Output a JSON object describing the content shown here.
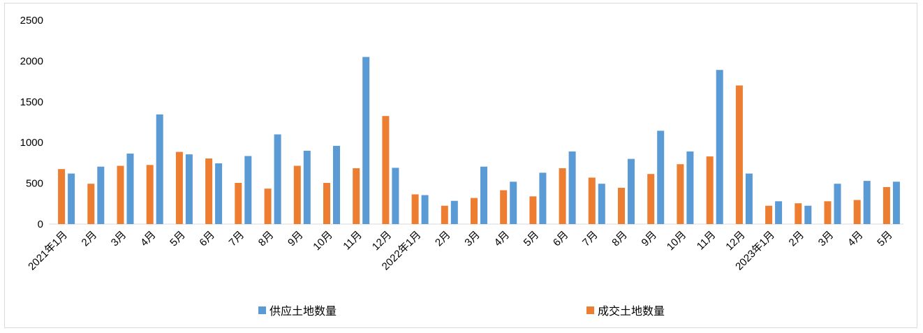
{
  "chart_data": {
    "type": "bar",
    "title": "",
    "xlabel": "",
    "ylabel": "",
    "ylim": [
      0,
      2500
    ],
    "yticks": [
      "0",
      "500",
      "1000",
      "1500",
      "2000",
      "2500"
    ],
    "grid": false,
    "legend_position": "bottom",
    "categories": [
      "2021年1月",
      "2月",
      "3月",
      "4月",
      "5月",
      "6月",
      "7月",
      "8月",
      "9月",
      "10月",
      "11月",
      "12月",
      "2022年1月",
      "2月",
      "3月",
      "4月",
      "5月",
      "6月",
      "7月",
      "8月",
      "9月",
      "10月",
      "11月",
      "12月",
      "2023年1月",
      "2月",
      "3月",
      "4月",
      "5月"
    ],
    "series": [
      {
        "name": "成交土地数量",
        "color": "#ED7D31",
        "values": [
          675,
          495,
          715,
          725,
          885,
          805,
          505,
          435,
          715,
          505,
          685,
          1325,
          365,
          225,
          320,
          415,
          340,
          685,
          570,
          445,
          615,
          735,
          830,
          1700,
          225,
          255,
          280,
          295,
          455
        ]
      },
      {
        "name": "供应土地数量",
        "color": "#5B9BD5",
        "values": [
          620,
          705,
          865,
          1345,
          855,
          745,
          835,
          1100,
          900,
          960,
          2050,
          690,
          355,
          285,
          705,
          520,
          630,
          890,
          495,
          800,
          1145,
          890,
          1890,
          620,
          280,
          225,
          495,
          530,
          520
        ]
      }
    ]
  }
}
